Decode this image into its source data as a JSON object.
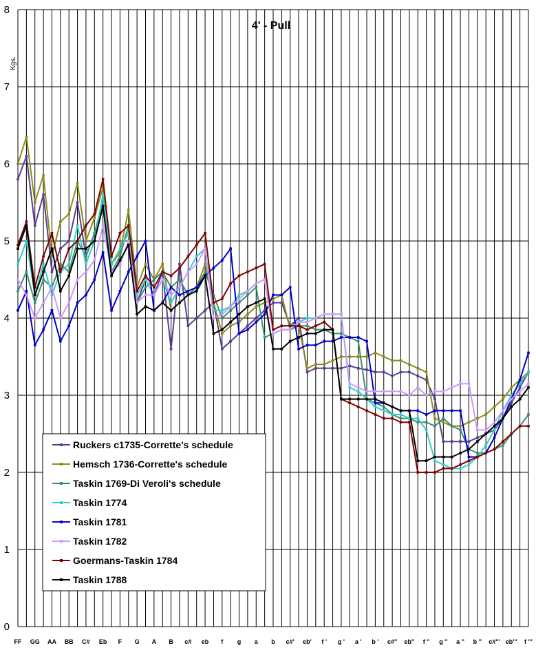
{
  "chart_data": {
    "type": "line",
    "title": "4' - Pull",
    "ylabel": "Kgs.",
    "xlabel": "",
    "ylim": [
      0,
      8
    ],
    "yticks": [
      "0",
      "1",
      "2",
      "3",
      "4",
      "5",
      "6",
      "7",
      "8"
    ],
    "grid": true,
    "legend_position": "bottom-left",
    "x_tick_labels": [
      "FF",
      "GG",
      "AA",
      "BB",
      "C#",
      "Eb",
      "F",
      "G",
      "A",
      "B",
      "c#",
      "eb",
      "f",
      "g",
      "a",
      "b",
      "c#'",
      "eb'",
      "f '",
      "g '",
      "a '",
      "b '",
      "c#''",
      "eb''",
      "f ''",
      "g ''",
      "a ''",
      "b ''",
      "c#'''",
      "eb'''",
      "f '''"
    ],
    "series": [
      {
        "name": "Ruckers c1735-Corrette's schedule",
        "color": "#5b3d8f",
        "values": [
          5.8,
          6.1,
          5.2,
          5.6,
          4.6,
          4.9,
          5.0,
          5.5,
          4.8,
          5.1,
          5.5,
          4.6,
          4.7,
          5.0,
          4.2,
          4.5,
          4.3,
          4.6,
          3.6,
          4.7,
          3.9,
          4.0,
          4.1,
          4.2,
          3.6,
          3.7,
          3.8,
          3.9,
          4.0,
          4.1,
          4.2,
          4.2,
          3.9,
          4.0,
          3.3,
          3.35,
          3.35,
          3.35,
          3.35,
          3.38,
          3.35,
          3.33,
          3.3,
          3.3,
          3.25,
          3.3,
          3.3,
          3.25,
          3.2,
          2.95,
          2.4,
          2.4,
          2.4,
          2.4,
          2.45,
          2.5,
          2.55,
          2.7,
          2.9,
          3.1,
          3.3
        ]
      },
      {
        "name": "Hemsch 1736-Corrette's schedule",
        "color": "#8b8b1a",
        "values": [
          6.0,
          6.35,
          5.5,
          5.85,
          4.8,
          5.25,
          5.35,
          5.75,
          5.0,
          5.3,
          5.7,
          4.7,
          4.85,
          5.4,
          4.4,
          4.7,
          4.5,
          4.7,
          4.1,
          4.2,
          4.3,
          4.4,
          4.7,
          4.2,
          3.8,
          3.9,
          3.95,
          4.05,
          4.15,
          4.2,
          4.25,
          4.3,
          3.85,
          3.9,
          3.35,
          3.4,
          3.4,
          3.45,
          3.5,
          3.5,
          3.5,
          3.5,
          3.55,
          3.5,
          3.45,
          3.45,
          3.4,
          3.35,
          3.3,
          2.7,
          2.65,
          2.6,
          2.6,
          2.65,
          2.7,
          2.75,
          2.85,
          2.95,
          3.1,
          3.2,
          3.3
        ]
      },
      {
        "name": "Taskin 1769-Di Veroli's schedule",
        "color": "#3a8f6f",
        "values": [
          4.35,
          4.6,
          4.2,
          4.5,
          4.4,
          4.7,
          4.6,
          5.0,
          4.8,
          5.1,
          5.5,
          4.6,
          4.8,
          5.2,
          4.2,
          4.4,
          4.5,
          4.6,
          4.4,
          4.5,
          4.3,
          4.4,
          4.6,
          4.3,
          4.0,
          4.1,
          4.2,
          4.3,
          4.4,
          3.75,
          3.8,
          3.85,
          3.85,
          3.9,
          3.9,
          3.85,
          3.85,
          3.8,
          3.8,
          3.75,
          3.7,
          2.95,
          2.9,
          2.85,
          2.75,
          2.7,
          2.7,
          2.65,
          2.65,
          2.6,
          2.7,
          2.6,
          2.55,
          2.3,
          2.25,
          2.25,
          2.3,
          2.35,
          2.5,
          2.6,
          2.75
        ]
      },
      {
        "name": "Taskin 1774",
        "color": "#33cccc",
        "values": [
          4.7,
          5.0,
          4.3,
          4.7,
          4.3,
          4.6,
          4.7,
          5.2,
          4.7,
          5.0,
          5.6,
          4.7,
          4.9,
          5.1,
          4.3,
          4.5,
          4.3,
          4.5,
          4.2,
          4.4,
          4.6,
          4.8,
          4.9,
          4.1,
          4.1,
          4.15,
          4.3,
          4.35,
          4.45,
          4.5,
          3.85,
          3.9,
          3.9,
          3.95,
          4.0,
          4.0,
          4.05,
          4.05,
          4.05,
          3.1,
          3.05,
          2.95,
          2.85,
          2.8,
          2.75,
          2.75,
          2.7,
          2.7,
          2.55,
          2.15,
          2.1,
          2.05,
          2.05,
          2.1,
          2.2,
          2.35,
          2.55,
          2.8,
          3.0,
          3.15,
          3.3
        ]
      },
      {
        "name": "Taskin 1781",
        "color": "#0000cc",
        "values": [
          4.1,
          4.35,
          3.65,
          3.85,
          4.1,
          3.7,
          3.9,
          4.2,
          4.3,
          4.5,
          4.85,
          4.1,
          4.35,
          4.6,
          4.8,
          5.0,
          4.1,
          4.2,
          4.4,
          4.3,
          4.35,
          4.4,
          4.55,
          4.65,
          4.75,
          4.9,
          3.8,
          3.85,
          3.95,
          4.05,
          4.3,
          4.3,
          4.4,
          3.6,
          3.65,
          3.65,
          3.7,
          3.7,
          3.75,
          3.75,
          3.75,
          3.7,
          2.9,
          2.9,
          2.85,
          2.8,
          2.8,
          2.8,
          2.75,
          2.8,
          2.8,
          2.8,
          2.8,
          2.2,
          2.2,
          2.25,
          2.45,
          2.7,
          2.95,
          3.2,
          3.55
        ]
      },
      {
        "name": "Taskin 1782",
        "color": "#cc99ff",
        "values": [
          4.5,
          4.3,
          4.0,
          4.2,
          4.4,
          4.0,
          4.2,
          4.5,
          4.6,
          4.75,
          5.2,
          4.6,
          4.7,
          5.0,
          4.2,
          4.3,
          4.3,
          4.5,
          4.3,
          4.4,
          4.6,
          4.7,
          4.9,
          4.0,
          4.05,
          4.15,
          4.25,
          4.35,
          4.45,
          4.5,
          3.8,
          3.85,
          3.85,
          3.95,
          3.95,
          4.0,
          4.05,
          4.05,
          4.05,
          3.15,
          3.1,
          3.05,
          3.05,
          3.05,
          3.05,
          3.05,
          3.0,
          3.1,
          3.0,
          3.05,
          3.05,
          3.1,
          3.15,
          3.15,
          2.55,
          2.55,
          2.65,
          2.8,
          2.95,
          3.05,
          3.15
        ]
      },
      {
        "name": "Goermans-Taskin 1784",
        "color": "#800000",
        "values": [
          4.95,
          5.25,
          4.4,
          4.8,
          5.1,
          4.6,
          4.9,
          5.0,
          5.2,
          5.35,
          5.8,
          4.8,
          5.1,
          5.2,
          4.35,
          4.55,
          4.4,
          4.6,
          4.55,
          4.65,
          4.8,
          4.95,
          5.1,
          4.2,
          4.25,
          4.45,
          4.55,
          4.6,
          4.65,
          4.7,
          3.85,
          3.9,
          3.9,
          3.9,
          3.85,
          3.9,
          3.95,
          3.85,
          2.95,
          2.9,
          2.85,
          2.8,
          2.75,
          2.7,
          2.7,
          2.65,
          2.65,
          2.0,
          2.0,
          2.0,
          2.05,
          2.05,
          2.1,
          2.15,
          2.2,
          2.25,
          2.3,
          2.4,
          2.5,
          2.6,
          2.6
        ]
      },
      {
        "name": "Taskin 1788",
        "color": "#000000",
        "values": [
          4.9,
          5.2,
          4.3,
          4.6,
          4.9,
          4.35,
          4.55,
          4.9,
          4.9,
          5.0,
          5.45,
          4.55,
          4.75,
          4.95,
          4.05,
          4.15,
          4.1,
          4.2,
          4.1,
          4.2,
          4.3,
          4.35,
          4.55,
          3.8,
          3.85,
          3.95,
          4.05,
          4.15,
          4.2,
          4.25,
          3.6,
          3.6,
          3.7,
          3.75,
          3.8,
          3.8,
          3.85,
          3.85,
          2.95,
          2.95,
          2.95,
          2.95,
          2.95,
          2.9,
          2.85,
          2.8,
          2.8,
          2.15,
          2.15,
          2.2,
          2.2,
          2.2,
          2.25,
          2.3,
          2.4,
          2.5,
          2.6,
          2.7,
          2.85,
          2.95,
          3.1
        ]
      }
    ]
  }
}
